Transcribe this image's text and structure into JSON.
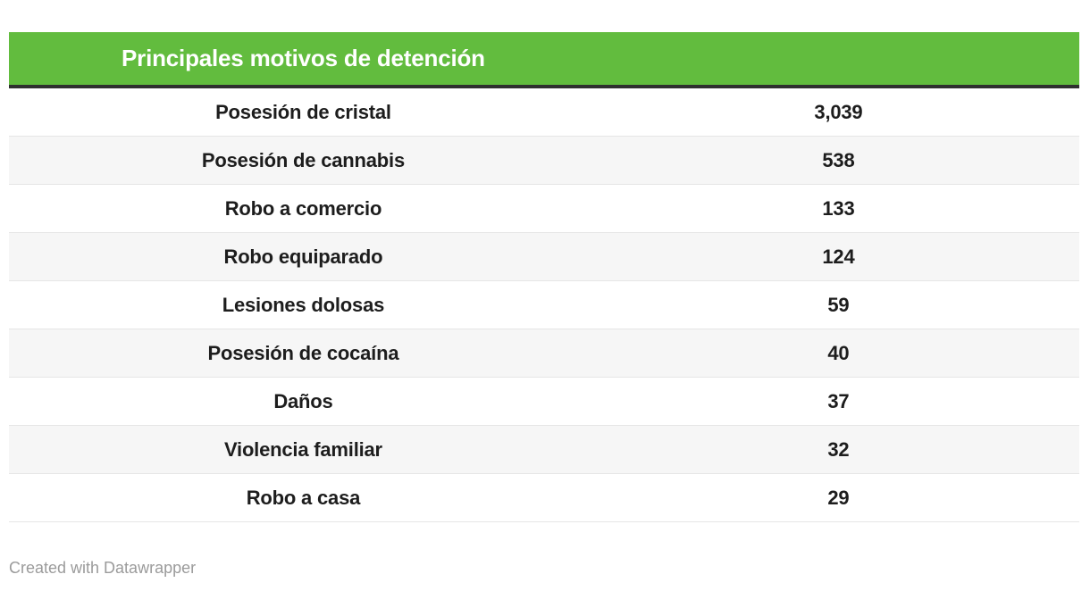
{
  "chart_data": {
    "type": "table",
    "title": "Principales motivos de detención",
    "categories": [
      "Posesión de cristal",
      "Posesión de cannabis",
      "Robo a comercio",
      "Robo equiparado",
      "Lesiones dolosas",
      "Posesión de cocaína",
      "Daños",
      "Violencia familiar",
      "Robo a casa"
    ],
    "values": [
      3039,
      538,
      133,
      124,
      59,
      40,
      37,
      32,
      29
    ],
    "legend": "none",
    "grid": "zebra-rows"
  },
  "table": {
    "title": "Principales motivos de detención",
    "rows": [
      {
        "label": "Posesión de cristal",
        "value": "3,039"
      },
      {
        "label": "Posesión de cannabis",
        "value": "538"
      },
      {
        "label": "Robo a comercio",
        "value": "133"
      },
      {
        "label": "Robo equiparado",
        "value": "124"
      },
      {
        "label": "Lesiones dolosas",
        "value": "59"
      },
      {
        "label": "Posesión de cocaína",
        "value": "40"
      },
      {
        "label": "Daños",
        "value": "37"
      },
      {
        "label": "Violencia familiar",
        "value": "32"
      },
      {
        "label": "Robo a casa",
        "value": "29"
      }
    ]
  },
  "footer": {
    "attribution": "Created with Datawrapper"
  },
  "colors": {
    "header_green": "#62bc3e",
    "header_rule": "#2f2f2f",
    "zebra": "#f6f6f6",
    "row_border": "#e6e6e6",
    "text": "#1d1d1d",
    "footer_text": "#9b9b9b"
  }
}
